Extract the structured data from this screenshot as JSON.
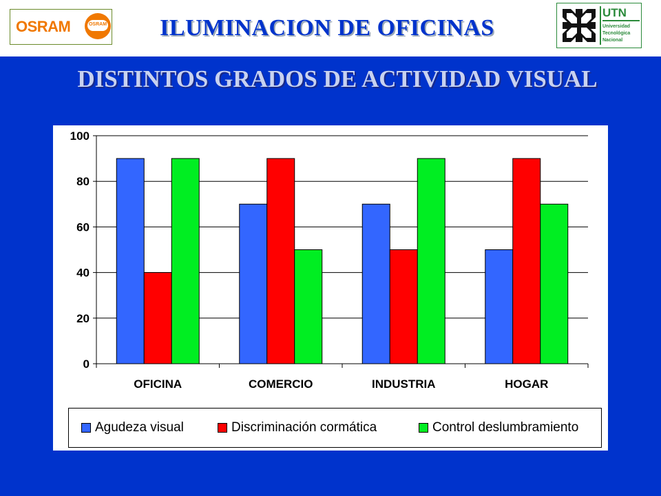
{
  "header": {
    "title": "ILUMINACION DE OFICINAS",
    "osram_logo": {
      "brand": "OSRAM",
      "bulb_text": "OSRAM",
      "color": "#f07800"
    },
    "utn_logo": {
      "acronym": "UTN",
      "line1": "Universidad",
      "line2": "Tecnológica",
      "line3": "Nacional",
      "color": "#2a8a3a"
    }
  },
  "subtitle": "DISTINTOS GRADOS DE ACTIVIDAD VISUAL",
  "colors": {
    "background": "#0033cc",
    "title": "#0033cc",
    "subtitle": "#c8d2f0"
  },
  "chart_data": {
    "type": "bar",
    "categories": [
      "OFICINA",
      "COMERCIO",
      "INDUSTRIA",
      "HOGAR"
    ],
    "series": [
      {
        "name": "Agudeza visual",
        "values": [
          90,
          70,
          70,
          50
        ],
        "color": "#3366ff"
      },
      {
        "name": "Discriminación cormática",
        "values": [
          40,
          90,
          50,
          90
        ],
        "color": "#ff0000"
      },
      {
        "name": "Control deslumbramiento",
        "values": [
          90,
          50,
          90,
          70
        ],
        "color": "#00ee22"
      }
    ],
    "ylim": [
      0,
      100
    ],
    "yticks": [
      0,
      20,
      40,
      60,
      80,
      100
    ],
    "grid": true,
    "legend": "bottom"
  }
}
